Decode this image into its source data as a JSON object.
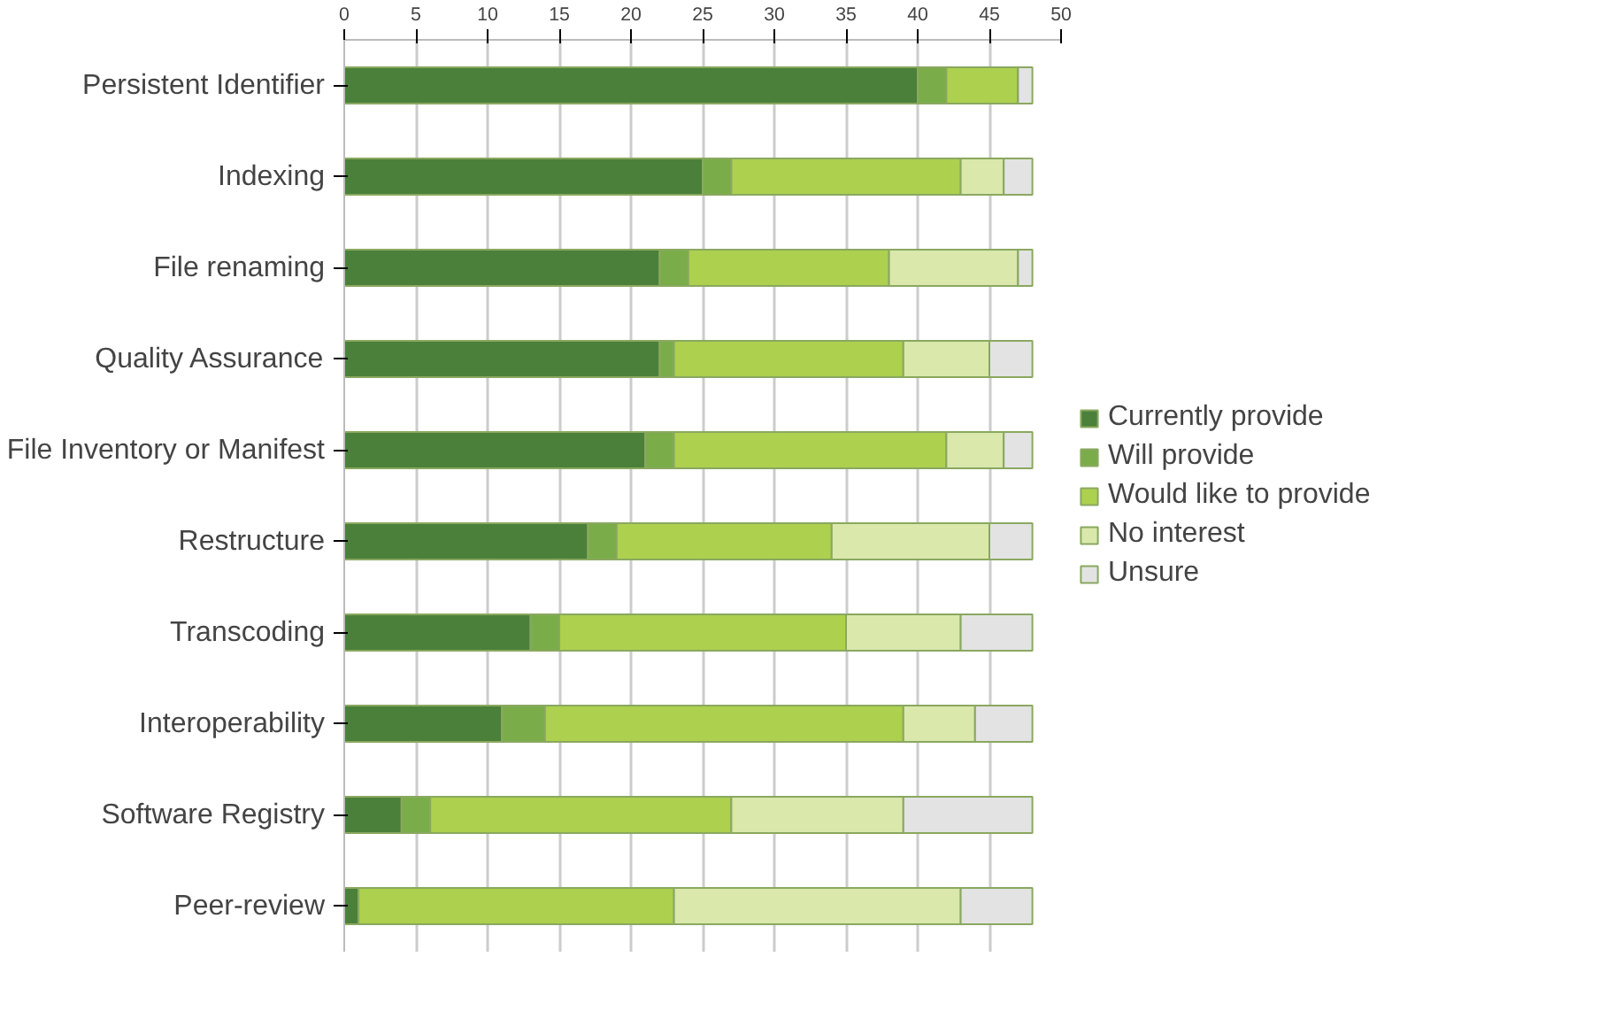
{
  "chart_data": {
    "type": "bar",
    "orientation": "horizontal",
    "stacked": true,
    "categories": [
      "Persistent Identifier",
      "Indexing",
      "File renaming",
      "Quality Assurance",
      "File Inventory or Manifest",
      "Restructure",
      "Transcoding",
      "Interoperability",
      "Software Registry",
      "Peer-review"
    ],
    "series": [
      {
        "name": "Currently provide",
        "color": "#4a803a",
        "values": [
          40,
          25,
          22,
          22,
          21,
          17,
          13,
          11,
          4,
          1
        ]
      },
      {
        "name": "Will provide",
        "color": "#7aad4a",
        "values": [
          2,
          2,
          2,
          1,
          2,
          2,
          2,
          3,
          2,
          0
        ]
      },
      {
        "name": "Would like to provide",
        "color": "#add04f",
        "values": [
          5,
          16,
          14,
          16,
          19,
          15,
          20,
          25,
          21,
          22
        ]
      },
      {
        "name": "No interest",
        "color": "#dae8ac",
        "values": [
          0,
          3,
          9,
          6,
          4,
          11,
          8,
          5,
          12,
          20
        ]
      },
      {
        "name": "Unsure",
        "color": "#e3e3e3",
        "values": [
          1,
          2,
          1,
          3,
          2,
          3,
          5,
          4,
          9,
          5
        ]
      }
    ],
    "xlim": [
      0,
      50
    ],
    "xticks": [
      0,
      5,
      10,
      15,
      20,
      25,
      30,
      35,
      40,
      45,
      50
    ],
    "grid": "x",
    "legend": "right"
  }
}
